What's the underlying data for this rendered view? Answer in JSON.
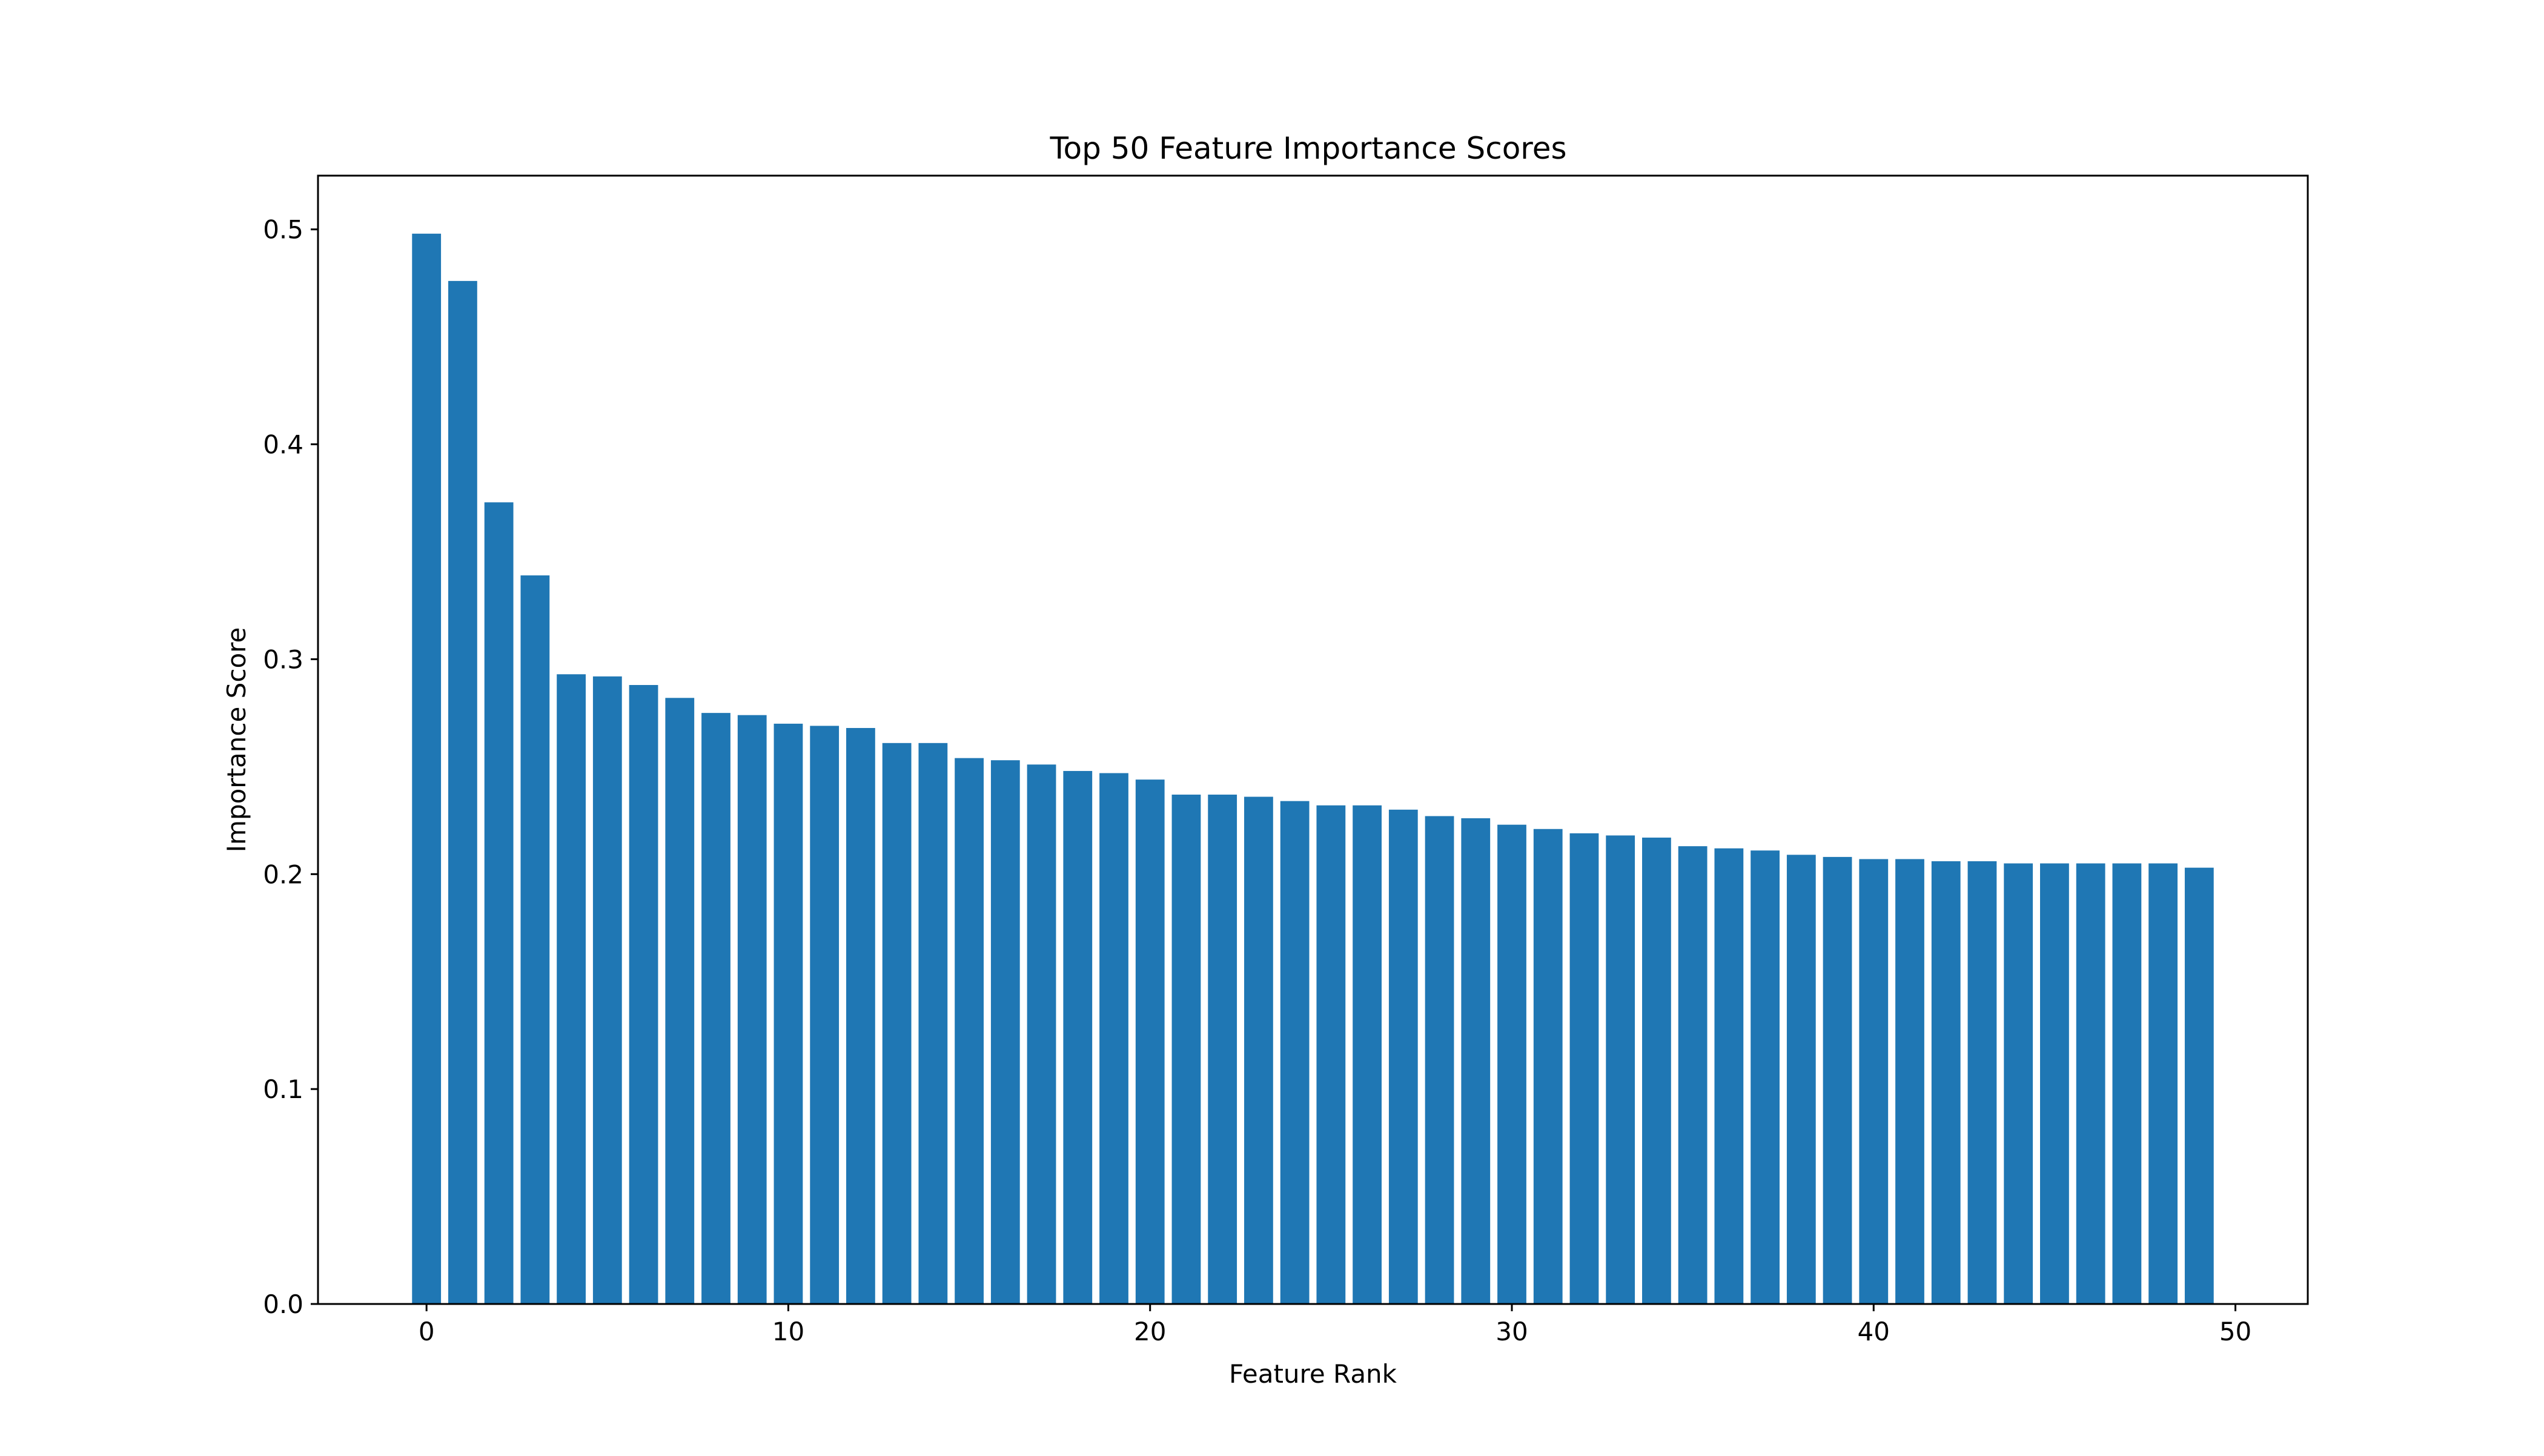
{
  "chart_data": {
    "type": "bar",
    "title": "Top 50 Feature Importance Scores",
    "xlabel": "Feature Rank",
    "ylabel": "Importance Score",
    "bar_color": "#1f77b4",
    "xlim": [
      -3,
      52
    ],
    "ylim": [
      0,
      0.525
    ],
    "xticks": [
      0,
      10,
      20,
      30,
      40,
      50
    ],
    "xtick_labels": [
      "0",
      "10",
      "20",
      "30",
      "40",
      "50"
    ],
    "yticks": [
      0,
      0.1,
      0.2,
      0.3,
      0.4,
      0.5
    ],
    "ytick_labels": [
      "0.0",
      "0.1",
      "0.2",
      "0.3",
      "0.4",
      "0.5"
    ],
    "grid": false,
    "legend": "none",
    "x": [
      0,
      1,
      2,
      3,
      4,
      5,
      6,
      7,
      8,
      9,
      10,
      11,
      12,
      13,
      14,
      15,
      16,
      17,
      18,
      19,
      20,
      21,
      22,
      23,
      24,
      25,
      26,
      27,
      28,
      29,
      30,
      31,
      32,
      33,
      34,
      35,
      36,
      37,
      38,
      39,
      40,
      41,
      42,
      43,
      44,
      45,
      46,
      47,
      48,
      49
    ],
    "values": [
      0.498,
      0.476,
      0.373,
      0.339,
      0.293,
      0.292,
      0.288,
      0.282,
      0.275,
      0.274,
      0.27,
      0.269,
      0.268,
      0.261,
      0.261,
      0.254,
      0.253,
      0.251,
      0.248,
      0.247,
      0.244,
      0.237,
      0.237,
      0.236,
      0.234,
      0.232,
      0.232,
      0.23,
      0.227,
      0.226,
      0.223,
      0.221,
      0.219,
      0.218,
      0.217,
      0.213,
      0.212,
      0.211,
      0.209,
      0.208,
      0.207,
      0.207,
      0.206,
      0.206,
      0.205,
      0.205,
      0.205,
      0.205,
      0.205,
      0.203
    ]
  }
}
